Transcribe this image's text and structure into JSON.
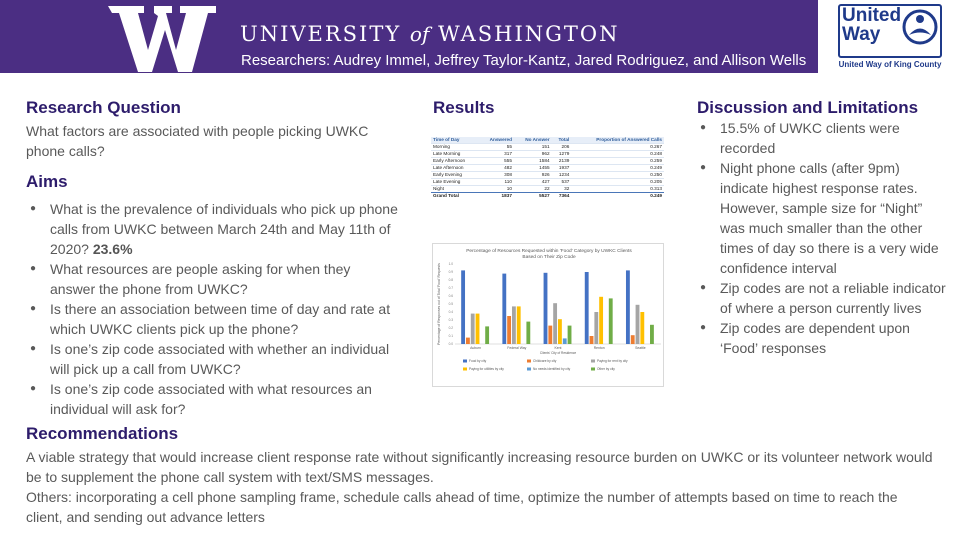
{
  "header": {
    "university_main": "UNIVERSITY",
    "university_of": "of",
    "university_place": "WASHINGTON",
    "researchers": "Researchers: Audrey Immel, Jeffrey Taylor-Kantz, Jared Rodriguez, and Allison Wells",
    "partner_logo_line1": "United",
    "partner_logo_line2": "Way",
    "partner_caption": "United Way of King County",
    "colors": {
      "uw_purple": "#4b2e83",
      "heading": "#2d1c6b",
      "united_way_blue": "#1f3a8a"
    }
  },
  "research_question": {
    "heading": "Research Question",
    "text": "What factors are associated with people picking UWKC phone calls?"
  },
  "aims": {
    "heading": "Aims",
    "items": [
      {
        "text": "What is the prevalence of individuals who pick up phone calls from UWKC between March 24th and May 11th of 2020?",
        "emphasis": "23.6%"
      },
      {
        "text": "What resources are people asking for when they answer the phone from UWKC?"
      },
      {
        "text": "Is there an association between time of day and rate at which UWKC clients pick up the phone?"
      },
      {
        "text": "Is one’s zip code associated with whether an individual will pick up a call from UWKC?"
      },
      {
        "text": "Is one’s zip code associated with what resources an individual will ask for?"
      }
    ]
  },
  "results": {
    "heading": "Results",
    "table": {
      "columns": [
        "Time of Day",
        "Answered",
        "No Answer",
        "Total",
        "Proportion of Answered Calls"
      ],
      "rows": [
        [
          "Morning",
          "55",
          "151",
          "206",
          "0.267"
        ],
        [
          "Late Morning",
          "317",
          "962",
          "1279",
          "0.248"
        ],
        [
          "Early Afternoon",
          "555",
          "1584",
          "2139",
          "0.259"
        ],
        [
          "Late Afternoon",
          "482",
          "1455",
          "1937",
          "0.249"
        ],
        [
          "Early Evening",
          "308",
          "926",
          "1234",
          "0.250"
        ],
        [
          "Late Evening",
          "110",
          "427",
          "537",
          "0.205"
        ],
        [
          "Night",
          "10",
          "22",
          "32",
          "0.313"
        ]
      ],
      "total": [
        "Grand Total",
        "1837",
        "5527",
        "7364",
        "0.249"
      ]
    }
  },
  "chart_data": {
    "type": "bar",
    "title": "Percentage of Resources Requested within 'Food' Category by UWKC Clients Based on Their Zip Code",
    "xlabel": "Clients' City of Residence",
    "ylabel": "Percentage of Responses out of Total 'Food' Requests",
    "categories": [
      "Auburn",
      "Federal Way",
      "Kent",
      "Renton",
      "Seattle"
    ],
    "ylim": [
      0,
      1
    ],
    "series": [
      {
        "name": "Food by city",
        "color": "#4472c4",
        "values": [
          0.92,
          0.88,
          0.89,
          0.9,
          0.92
        ]
      },
      {
        "name": "Childcare by city",
        "color": "#ed7d31",
        "values": [
          0.08,
          0.35,
          0.23,
          0.1,
          0.11
        ]
      },
      {
        "name": "Paying for rent by city",
        "color": "#a5a5a5",
        "values": [
          0.38,
          0.47,
          0.51,
          0.4,
          0.49
        ]
      },
      {
        "name": "Paying for utilities by city",
        "color": "#ffc000",
        "values": [
          0.38,
          0.47,
          0.31,
          0.59,
          0.4
        ]
      },
      {
        "name": "No needs identified by city",
        "color": "#5b9bd5",
        "values": [
          0.0,
          0.0,
          0.07,
          0.0,
          0.0
        ]
      },
      {
        "name": "Other by city",
        "color": "#70ad47",
        "values": [
          0.22,
          0.28,
          0.23,
          0.57,
          0.24
        ]
      }
    ],
    "legend": "bottom",
    "grid": false
  },
  "discussion": {
    "heading": "Discussion and Limitations",
    "items": [
      "15.5% of UWKC clients were recorded",
      "Night phone calls (after 9pm) indicate highest response rates. However,  sample size for “Night” was much smaller than the other times of day so there is a very wide confidence interval",
      "Zip codes are not a reliable indicator of where a person currently lives",
      "Zip codes are dependent upon ‘Food’ responses"
    ]
  },
  "recommendations": {
    "heading": "Recommendations",
    "paragraph1": "A viable strategy that would increase client response rate without significantly increasing resource burden on UWKC or its volunteer network would be to supplement the phone call system with text/SMS messages.",
    "paragraph2": "Others: incorporating a cell phone sampling frame, schedule calls ahead of time, optimize the number of attempts based on time to reach the client, and sending out advance letters"
  }
}
